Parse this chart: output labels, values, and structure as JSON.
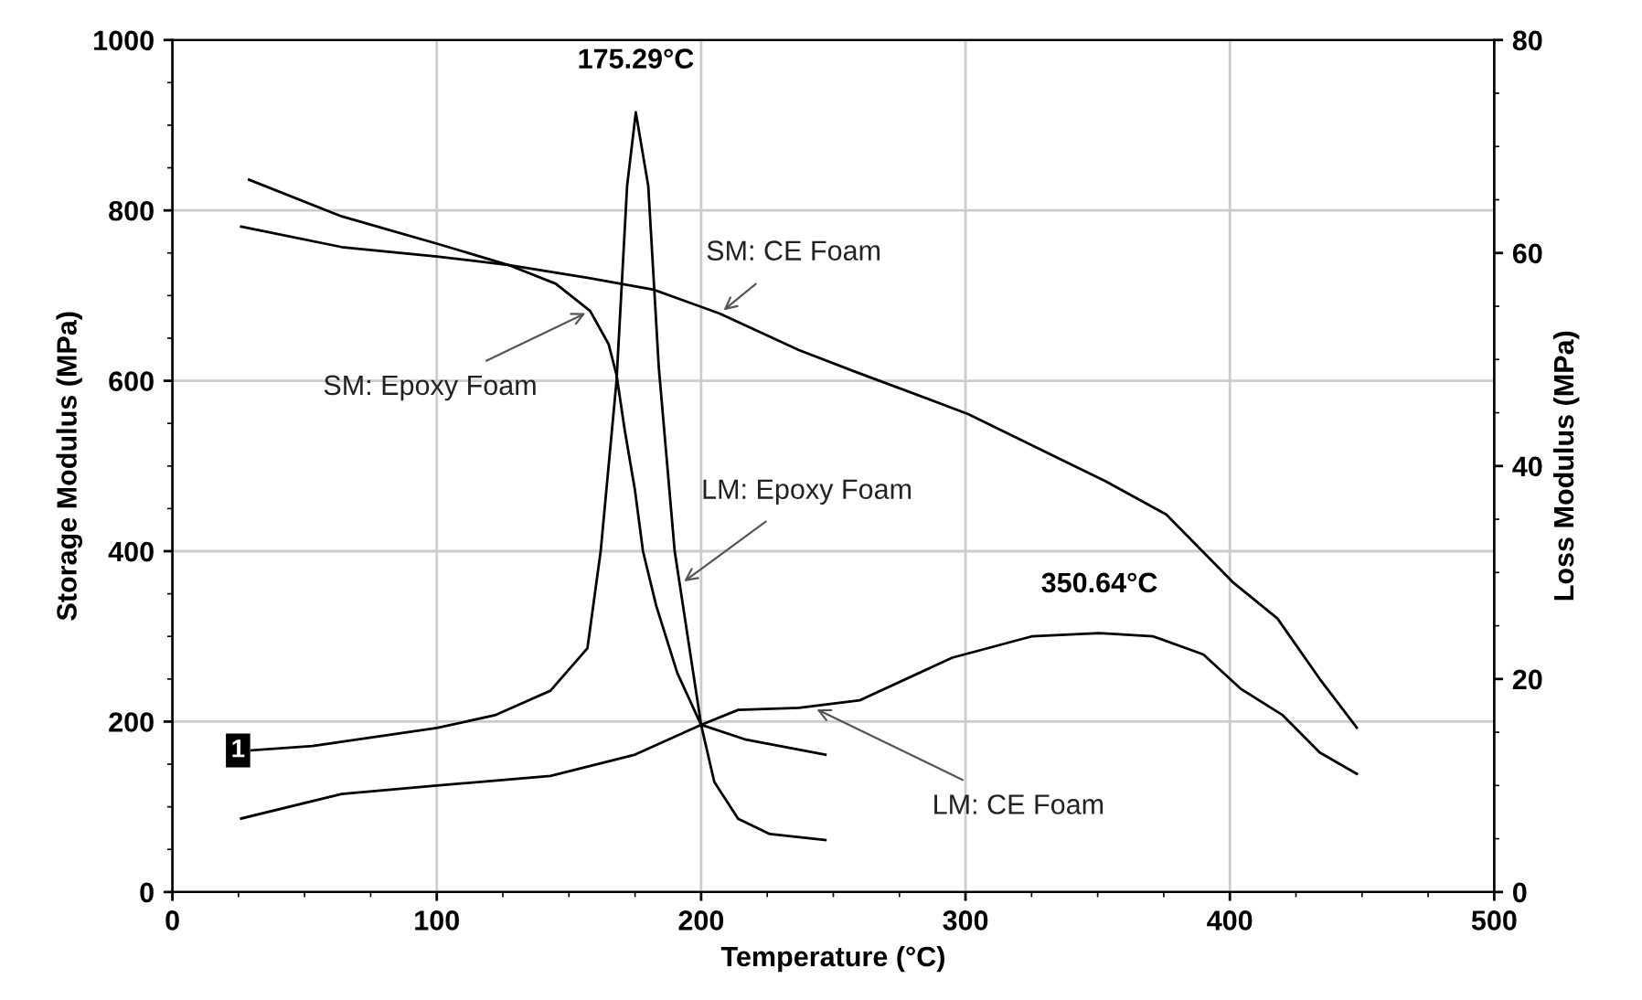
{
  "chart_data": {
    "type": "line",
    "xlabel": "Temperature (°C)",
    "ylabel": "Storage Modulus (MPa)",
    "y2label": "Loss Modulus (MPa)",
    "xlim": [
      0,
      500
    ],
    "xticks": [
      0,
      100,
      200,
      300,
      400,
      500
    ],
    "ylim": [
      0,
      1000
    ],
    "yticks": [
      0,
      200,
      400,
      600,
      800,
      1000
    ],
    "y2lim": [
      0,
      80
    ],
    "y2ticks": [
      0,
      20,
      40,
      60,
      80
    ],
    "grid": true,
    "marker": "none",
    "line_style": "solid",
    "series": [
      {
        "color": "#000000",
        "axis": "y",
        "x": [
          26,
          64,
          100,
          127,
          145,
          158,
          165,
          168,
          171,
          175,
          178,
          183,
          191,
          200,
          205,
          214,
          226,
          247
        ],
        "values": [
          781,
          757,
          746,
          736,
          714,
          682,
          643,
          607,
          544,
          471,
          400,
          336,
          257,
          196,
          129,
          86,
          68,
          61
        ]
      },
      {
        "color": "#000000",
        "axis": "y",
        "x": [
          29,
          64,
          100,
          127,
          157,
          182,
          207,
          237,
          258,
          301,
          353,
          376,
          401,
          418,
          434,
          448
        ],
        "values": [
          836,
          793,
          761,
          736,
          721,
          707,
          679,
          636,
          611,
          561,
          482,
          443,
          364,
          321,
          250,
          193
        ]
      },
      {
        "color": "#000000",
        "axis": "y2",
        "x": [
          30,
          53,
          100,
          122,
          143,
          157,
          162,
          168,
          172,
          175.29,
          180,
          184,
          190,
          200,
          217,
          247
        ],
        "values": [
          13.3,
          13.7,
          15.4,
          16.6,
          18.9,
          22.9,
          32,
          48,
          66.3,
          73.2,
          66.3,
          49.2,
          32,
          15.7,
          14.3,
          12.9
        ]
      },
      {
        "color": "#000000",
        "axis": "y2",
        "x": [
          26,
          64,
          100,
          143,
          175,
          200,
          214,
          237,
          260,
          295,
          325,
          350.64,
          371,
          390,
          404,
          420,
          434,
          448
        ],
        "values": [
          6.9,
          9.2,
          10.0,
          10.9,
          12.9,
          15.7,
          17.1,
          17.3,
          18,
          22,
          24,
          24.3,
          24,
          22.3,
          19.1,
          16.6,
          13.1,
          11.1
        ]
      }
    ],
    "annotations": [
      {
        "text": "SM: Epoxy Foam",
        "x": 158,
        "y": 682
      },
      {
        "text": "SM: CE Foam",
        "x": 207,
        "y": 679
      },
      {
        "text": "LM: Epoxy Foam",
        "x": 192,
        "y": 361
      },
      {
        "text": "LM: CE Foam",
        "x": 242,
        "y": 217
      },
      "175.29°C",
      "350.64°C",
      "1"
    ]
  }
}
